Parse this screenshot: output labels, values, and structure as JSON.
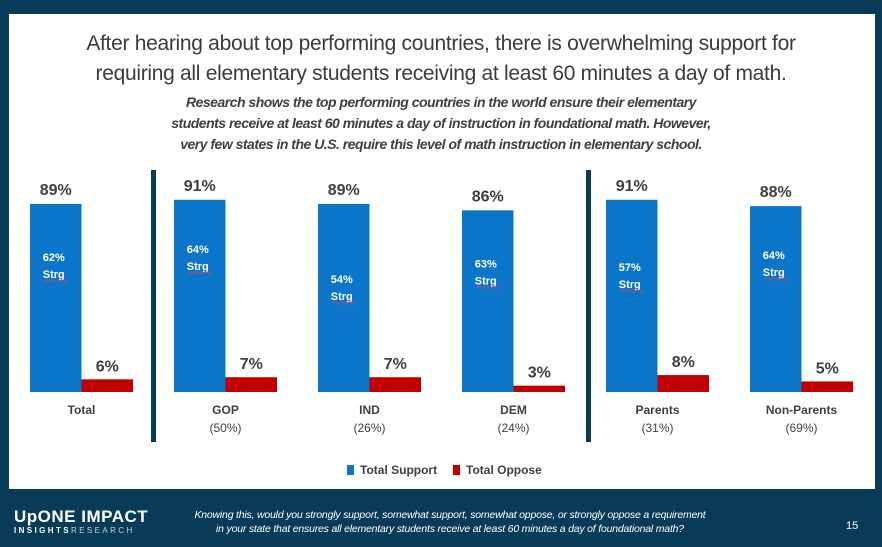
{
  "slide": {
    "title_line1": "After hearing about top performing countries, there is overwhelming support for",
    "title_line2": "requiring all elementary students receiving at least 60 minutes a day of math.",
    "subtitle_line1": "Research shows the top performing countries in the world ensure their elementary",
    "subtitle_line2": "students receive at least 60 minutes a day of instruction in foundational math. However,",
    "subtitle_line3": "very few states in the U.S. require this level of math instruction in elementary school.",
    "page_number": "15"
  },
  "footer": {
    "logo_top_a": "UpONE",
    "logo_top_b": "IMPACT",
    "logo_bottom_a": "INSIGHTS",
    "logo_bottom_b": "RESEARCH",
    "question_line1": "Knowing this, would you strongly support, somewhat support, somewhat oppose, or strongly oppose a requirement",
    "question_line2": "in your state that ensures all elementary students receive at least 60 minutes a day of foundational math?"
  },
  "colors": {
    "support": "#0a75c9",
    "oppose": "#c00000",
    "divider": "#073b58",
    "label": "#3f3f3f"
  },
  "chart_data": {
    "type": "bar",
    "title": "After hearing about top performing countries, there is overwhelming support for requiring all elementary students receiving at least 60 minutes a day of math.",
    "xlabel": "",
    "ylabel": "",
    "ylim": [
      0,
      100
    ],
    "grid": false,
    "legend_position": "bottom-center",
    "categories": [
      "Total",
      "GOP",
      "IND",
      "DEM",
      "Parents",
      "Non-Parents"
    ],
    "category_sublabels": [
      "",
      "(50%)",
      "(26%)",
      "(24%)",
      "(31%)",
      "(69%)"
    ],
    "group_dividers_after": [
      "Total",
      "DEM"
    ],
    "series": [
      {
        "name": "Total Support",
        "values": [
          89,
          91,
          89,
          86,
          91,
          88
        ]
      },
      {
        "name": "Total Oppose",
        "values": [
          6,
          7,
          7,
          3,
          8,
          5
        ]
      }
    ],
    "strongly_support": [
      62,
      64,
      54,
      63,
      57,
      64
    ],
    "strongly_suffix": "Strg",
    "value_suffix": "%"
  }
}
